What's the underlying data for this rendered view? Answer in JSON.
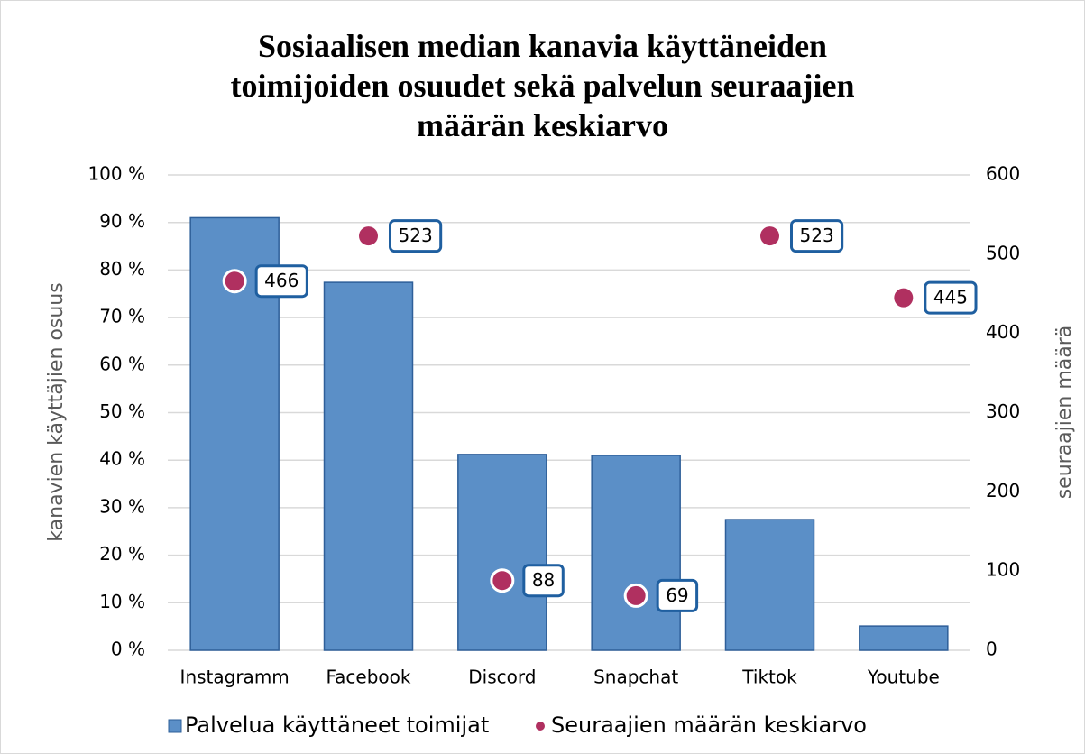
{
  "chart_data": {
    "type": "bar",
    "title": "Sosiaalisen median kanavia käyttäneiden\ntoimijoiden osuudet sekä palvelun seuraajien\nmäärän keskiarvo",
    "categories": [
      "Instagramm",
      "Facebook",
      "Discord",
      "Snapchat",
      "Tiktok",
      "Youtube"
    ],
    "series": [
      {
        "name": "Palvelua käyttäneet toimijat",
        "type": "bar",
        "color": "#5b8fc7",
        "values": [
          91,
          77.4,
          41.2,
          41,
          27.5,
          5.1
        ]
      },
      {
        "name": "Seuraajien määrän keskiarvo",
        "type": "scatter",
        "axis": "y2",
        "color": "#b03060",
        "values": [
          466,
          523,
          88,
          69,
          523,
          445
        ]
      }
    ],
    "ylabel": "kanavien käyttäjien osuus",
    "y2label": "seuraajien määrä",
    "ylim": [
      0,
      100
    ],
    "yticks": [
      {
        "value": 0,
        "label": "0 %"
      },
      {
        "value": 10,
        "label": "10 %"
      },
      {
        "value": 20,
        "label": "20 %"
      },
      {
        "value": 30,
        "label": "30 %"
      },
      {
        "value": 40,
        "label": "40 %"
      },
      {
        "value": 50,
        "label": "50 %"
      },
      {
        "value": 60,
        "label": "60 %"
      },
      {
        "value": 70,
        "label": "70 %"
      },
      {
        "value": 80,
        "label": "80 %"
      },
      {
        "value": 90,
        "label": "90 %"
      },
      {
        "value": 100,
        "label": "100 %"
      }
    ],
    "y2lim": [
      0,
      600
    ],
    "y2ticks": [
      0,
      100,
      200,
      300,
      400,
      500,
      600
    ],
    "grid": true,
    "legend": "bottom"
  }
}
